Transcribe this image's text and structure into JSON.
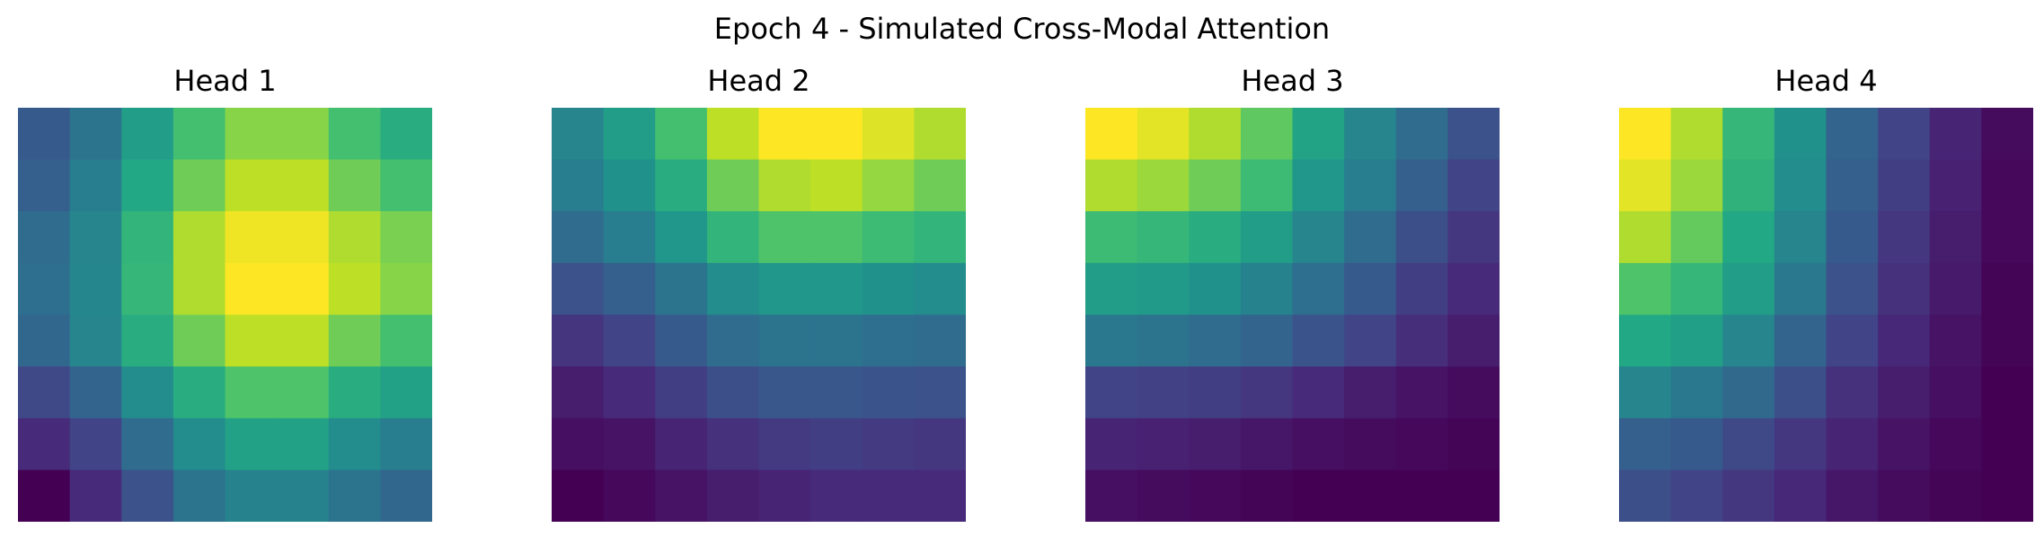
{
  "chart_data": {
    "type": "heatmap",
    "title": "Epoch 4 - Simulated Cross-Modal Attention",
    "colormap": "viridis",
    "value_range": [
      0,
      1
    ],
    "axes": "off",
    "panels": [
      {
        "title": "Head 1",
        "rows": 8,
        "cols": 8,
        "values": [
          [
            0.28,
            0.38,
            0.55,
            0.7,
            0.82,
            0.82,
            0.7,
            0.62
          ],
          [
            0.3,
            0.42,
            0.6,
            0.78,
            0.9,
            0.9,
            0.78,
            0.7
          ],
          [
            0.35,
            0.45,
            0.65,
            0.88,
            0.98,
            0.98,
            0.88,
            0.8
          ],
          [
            0.36,
            0.46,
            0.66,
            0.88,
            1.0,
            1.0,
            0.9,
            0.82
          ],
          [
            0.33,
            0.45,
            0.62,
            0.78,
            0.9,
            0.9,
            0.78,
            0.7
          ],
          [
            0.22,
            0.32,
            0.48,
            0.62,
            0.72,
            0.72,
            0.62,
            0.57
          ],
          [
            0.12,
            0.2,
            0.35,
            0.48,
            0.57,
            0.57,
            0.48,
            0.42
          ],
          [
            0.0,
            0.12,
            0.25,
            0.38,
            0.44,
            0.44,
            0.38,
            0.33
          ]
        ]
      },
      {
        "title": "Head 2",
        "rows": 8,
        "cols": 8,
        "values": [
          [
            0.45,
            0.55,
            0.7,
            0.9,
            1.0,
            1.0,
            0.95,
            0.88
          ],
          [
            0.42,
            0.5,
            0.62,
            0.78,
            0.88,
            0.9,
            0.84,
            0.78
          ],
          [
            0.35,
            0.42,
            0.52,
            0.65,
            0.72,
            0.72,
            0.68,
            0.65
          ],
          [
            0.25,
            0.3,
            0.38,
            0.48,
            0.52,
            0.52,
            0.5,
            0.48
          ],
          [
            0.15,
            0.2,
            0.28,
            0.35,
            0.38,
            0.38,
            0.36,
            0.35
          ],
          [
            0.08,
            0.12,
            0.18,
            0.24,
            0.27,
            0.27,
            0.26,
            0.25
          ],
          [
            0.04,
            0.05,
            0.1,
            0.14,
            0.17,
            0.18,
            0.17,
            0.16
          ],
          [
            0.0,
            0.02,
            0.05,
            0.08,
            0.1,
            0.12,
            0.12,
            0.12
          ]
        ]
      },
      {
        "title": "Head 3",
        "rows": 8,
        "cols": 8,
        "values": [
          [
            1.0,
            0.96,
            0.88,
            0.75,
            0.58,
            0.45,
            0.35,
            0.25
          ],
          [
            0.88,
            0.85,
            0.78,
            0.68,
            0.52,
            0.42,
            0.3,
            0.2
          ],
          [
            0.68,
            0.66,
            0.62,
            0.55,
            0.45,
            0.35,
            0.24,
            0.16
          ],
          [
            0.55,
            0.54,
            0.5,
            0.44,
            0.36,
            0.28,
            0.18,
            0.12
          ],
          [
            0.4,
            0.38,
            0.35,
            0.32,
            0.26,
            0.2,
            0.13,
            0.08
          ],
          [
            0.2,
            0.19,
            0.18,
            0.16,
            0.12,
            0.08,
            0.05,
            0.03
          ],
          [
            0.1,
            0.09,
            0.08,
            0.06,
            0.04,
            0.03,
            0.02,
            0.01
          ],
          [
            0.04,
            0.03,
            0.02,
            0.01,
            0.0,
            0.0,
            0.0,
            0.0
          ]
        ]
      },
      {
        "title": "Head 4",
        "rows": 8,
        "cols": 8,
        "values": [
          [
            1.0,
            0.88,
            0.66,
            0.5,
            0.32,
            0.2,
            0.1,
            0.03
          ],
          [
            0.96,
            0.85,
            0.64,
            0.48,
            0.3,
            0.18,
            0.09,
            0.02
          ],
          [
            0.88,
            0.76,
            0.6,
            0.45,
            0.28,
            0.16,
            0.08,
            0.02
          ],
          [
            0.72,
            0.66,
            0.55,
            0.4,
            0.25,
            0.14,
            0.07,
            0.01
          ],
          [
            0.6,
            0.56,
            0.45,
            0.32,
            0.2,
            0.11,
            0.05,
            0.01
          ],
          [
            0.45,
            0.4,
            0.34,
            0.24,
            0.14,
            0.08,
            0.04,
            0.0
          ],
          [
            0.3,
            0.28,
            0.22,
            0.16,
            0.1,
            0.05,
            0.02,
            0.0
          ],
          [
            0.24,
            0.2,
            0.16,
            0.11,
            0.06,
            0.03,
            0.01,
            0.0
          ]
        ]
      }
    ]
  }
}
